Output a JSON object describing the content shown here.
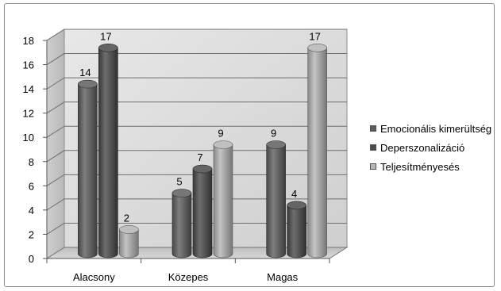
{
  "chart_data": {
    "type": "bar",
    "style": "3d-cylinder",
    "categories": [
      "Alacsony",
      "Közepes",
      "Magas"
    ],
    "series": [
      {
        "name": "Emocionális kimerültség",
        "values": [
          14,
          5,
          9
        ],
        "color": "#5e5e5e"
      },
      {
        "name": "Deperszonalizáció",
        "values": [
          17,
          7,
          4
        ],
        "color": "#4a4a4a"
      },
      {
        "name": "Teljesítményesés",
        "values": [
          2,
          9,
          17
        ],
        "color": "#b5b5b5"
      }
    ],
    "y_ticks": [
      "0",
      "2",
      "4",
      "6",
      "8",
      "10",
      "12",
      "14",
      "16",
      "18"
    ],
    "ylim": [
      0,
      18
    ],
    "grid": true,
    "legend_position": "right",
    "title": "",
    "xlabel": "",
    "ylabel": ""
  }
}
